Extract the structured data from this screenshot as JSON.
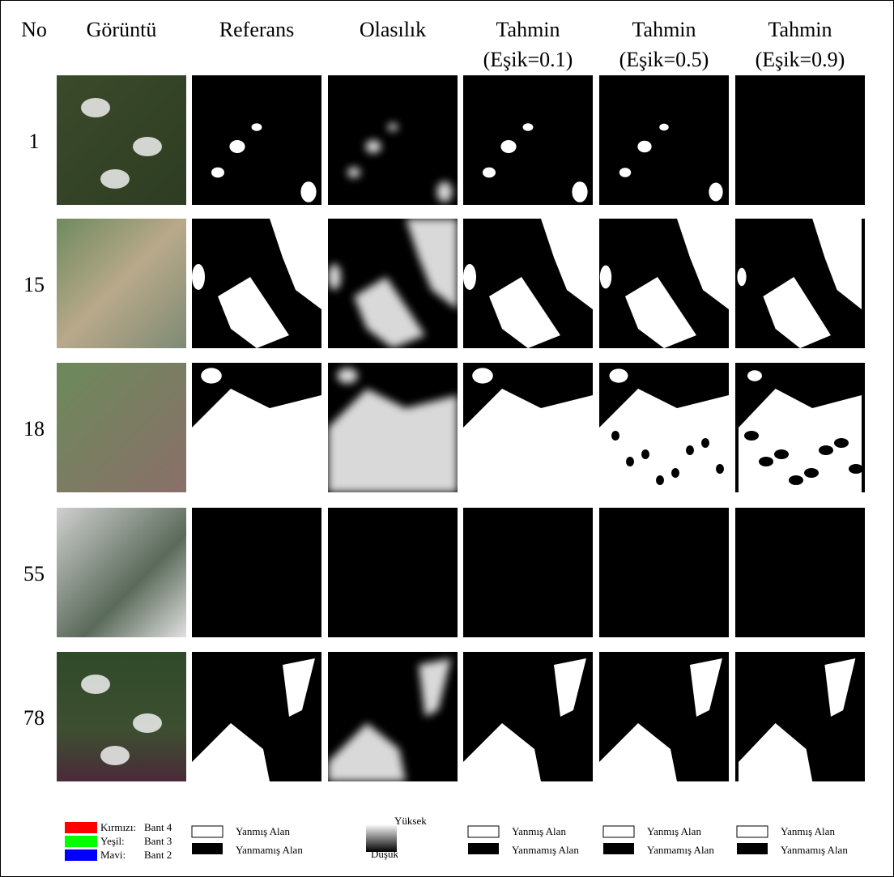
{
  "header": {
    "columns": [
      {
        "lines": [
          "No"
        ]
      },
      {
        "lines": [
          "Görüntü"
        ]
      },
      {
        "lines": [
          "Referans"
        ]
      },
      {
        "lines": [
          "Olasılık"
        ]
      },
      {
        "lines": [
          "Tahmin",
          "(Eşik=0.1)"
        ]
      },
      {
        "lines": [
          "Tahmin",
          "(Eşik=0.5)"
        ]
      },
      {
        "lines": [
          "Tahmin",
          "(Eşik=0.9)"
        ]
      }
    ]
  },
  "rows": [
    {
      "no": "1"
    },
    {
      "no": "15"
    },
    {
      "no": "18"
    },
    {
      "no": "55"
    },
    {
      "no": "78"
    }
  ],
  "legend": {
    "bands": [
      {
        "color_name": "Kırmızı:",
        "band": "Bant 4"
      },
      {
        "color_name": "Yeşil:",
        "band": "Bant 3"
      },
      {
        "color_name": "Mavi:",
        "band": "Bant 2"
      }
    ],
    "binary": [
      {
        "burned": "Yanmış Alan",
        "unburned": "Yanmamış Alan"
      },
      {
        "burned": "Yanmış Alan",
        "unburned": "Yanmamış Alan"
      },
      {
        "burned": "Yanmış Alan",
        "unburned": "Yanmamış Alan"
      },
      {
        "burned": "Yanmış Alan",
        "unburned": "Yanmamış Alan"
      }
    ],
    "probability": {
      "high": "Yüksek",
      "low": "Düşük"
    }
  }
}
